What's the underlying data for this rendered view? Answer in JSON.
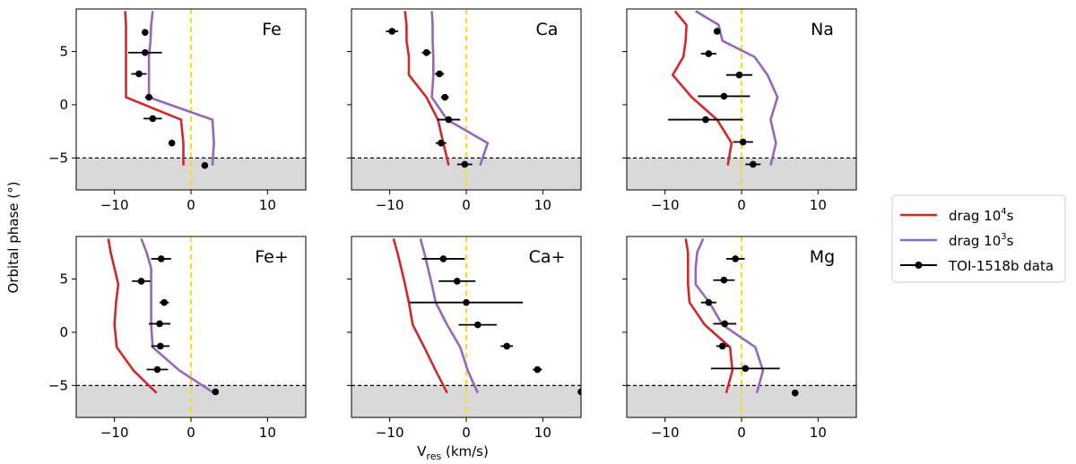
{
  "figure": {
    "ylabel": "Orbital phase (°)",
    "xlabel_main": "V",
    "xlabel_sub": "res",
    "xlabel_unit": " (km/s)"
  },
  "legend": {
    "position": "right",
    "entries": [
      {
        "label_main": "drag 10",
        "label_sup": "4",
        "label_end": "s",
        "color": "#d62728",
        "kind": "line"
      },
      {
        "label_main": "drag 10",
        "label_sup": "3",
        "label_end": "s",
        "color": "#9467bd",
        "kind": "line"
      },
      {
        "label_main": "TOI-1518b data",
        "label_sup": "",
        "label_end": "",
        "color": "#000000",
        "kind": "errorbar"
      }
    ]
  },
  "colors": {
    "drag_1e4": "#d62728",
    "drag_1e3": "#9467bd",
    "data": "#000000",
    "zero_line": "#ffd700",
    "shade": "#d9d9d9",
    "threshold": "#000000"
  },
  "chart_data": [
    {
      "type": "line",
      "title": "Fe",
      "xlim": [
        -15,
        15
      ],
      "ylim": [
        -8,
        9
      ],
      "xticks": [
        -10,
        0,
        10
      ],
      "yticks": [
        -5,
        0,
        5
      ],
      "show_xticklabels": true,
      "show_yticklabels": true,
      "shade_below": -5,
      "threshold": -5,
      "zero_line": 0,
      "series": [
        {
          "name": "drag 10^4s",
          "x": [
            -1.0,
            -1.0,
            -1.3,
            -8.5,
            -8.5,
            -8.5,
            -8.5,
            -8.5,
            -8.6
          ],
          "y": [
            -5.7,
            -3.6,
            -1.4,
            0.7,
            2.8,
            4.5,
            6.0,
            7.5,
            8.8
          ]
        },
        {
          "name": "drag 10^3s",
          "x": [
            2.8,
            3.0,
            2.8,
            -5.5,
            -5.5,
            -5.5,
            -5.3,
            -5.2,
            -5.0
          ],
          "y": [
            -5.7,
            -3.6,
            -1.4,
            0.7,
            2.8,
            4.5,
            6.0,
            7.5,
            8.8
          ]
        }
      ],
      "data_points": {
        "x": [
          -6.0,
          -6.0,
          -6.8,
          -5.5,
          -5.0,
          -2.5,
          1.8
        ],
        "y": [
          6.8,
          4.9,
          2.9,
          0.7,
          -1.3,
          -3.6,
          -5.7
        ],
        "xerr": [
          0,
          2.2,
          1.0,
          0.5,
          1.2,
          0.3,
          0
        ]
      }
    },
    {
      "type": "line",
      "title": "Ca",
      "xlim": [
        -15,
        15
      ],
      "ylim": [
        -8,
        9
      ],
      "xticks": [
        -10,
        0,
        10
      ],
      "yticks": [
        -5,
        0,
        5
      ],
      "show_xticklabels": true,
      "show_yticklabels": false,
      "shade_below": -5,
      "threshold": -5,
      "zero_line": 0,
      "series": [
        {
          "name": "drag 10^4s",
          "x": [
            -2.3,
            -3.0,
            -3.7,
            -5.2,
            -7.5,
            -7.5,
            -7.8,
            -7.8,
            -8.0
          ],
          "y": [
            -5.7,
            -3.6,
            -1.4,
            0.7,
            2.8,
            4.5,
            6.0,
            7.5,
            8.8
          ]
        },
        {
          "name": "drag 10^3s",
          "x": [
            1.8,
            2.8,
            -2.5,
            -4.5,
            -4.3,
            -4.3,
            -4.4,
            -4.4,
            -4.5
          ],
          "y": [
            -5.7,
            -3.6,
            -1.4,
            0.7,
            2.8,
            4.5,
            6.0,
            7.5,
            8.8
          ]
        }
      ],
      "data_points": {
        "x": [
          -9.7,
          -5.2,
          -3.5,
          -2.8,
          -2.3,
          -3.3,
          -0.2
        ],
        "y": [
          6.9,
          4.9,
          2.9,
          0.7,
          -1.4,
          -3.6,
          -5.6
        ],
        "xerr": [
          0.8,
          0.6,
          0.6,
          0.5,
          1.5,
          0.7,
          1.0
        ]
      }
    },
    {
      "type": "line",
      "title": "Na",
      "xlim": [
        -15,
        15
      ],
      "ylim": [
        -8,
        9
      ],
      "xticks": [
        -10,
        0,
        10
      ],
      "yticks": [
        -5,
        0,
        5
      ],
      "show_xticklabels": true,
      "show_yticklabels": false,
      "shade_below": -5,
      "threshold": -5,
      "zero_line": 0,
      "series": [
        {
          "name": "drag 10^4s",
          "x": [
            -1.8,
            -1.3,
            -3.2,
            -6.5,
            -9.0,
            -7.6,
            -7.3,
            -7.2,
            -8.7
          ],
          "y": [
            -5.7,
            -3.6,
            -1.4,
            0.7,
            2.8,
            4.5,
            6.0,
            7.5,
            8.8
          ]
        },
        {
          "name": "drag 10^3s",
          "x": [
            3.8,
            4.5,
            3.8,
            4.7,
            3.4,
            1.7,
            -2.5,
            -3.0,
            -6.0
          ],
          "y": [
            -5.7,
            -3.6,
            -1.4,
            0.7,
            2.8,
            4.5,
            6.0,
            7.5,
            8.8
          ]
        }
      ],
      "data_points": {
        "x": [
          -3.2,
          -4.3,
          -0.3,
          -2.3,
          -4.7,
          0.2,
          1.5
        ],
        "y": [
          6.9,
          4.8,
          2.8,
          0.8,
          -1.4,
          -3.5,
          -5.6
        ],
        "xerr": [
          0,
          1.0,
          1.7,
          3.4,
          4.9,
          1.3,
          1.0
        ]
      }
    },
    {
      "type": "line",
      "title": "Fe+",
      "xlim": [
        -15,
        15
      ],
      "ylim": [
        -8,
        9
      ],
      "xticks": [
        -10,
        0,
        10
      ],
      "yticks": [
        -5,
        0,
        5
      ],
      "show_xticklabels": true,
      "show_yticklabels": true,
      "shade_below": -5,
      "threshold": -5,
      "zero_line": 0,
      "series": [
        {
          "name": "drag 10^4s",
          "x": [
            -4.5,
            -7.5,
            -9.7,
            -10.0,
            -9.8,
            -9.5,
            -10.0,
            -10.5,
            -10.8
          ],
          "y": [
            -5.7,
            -3.6,
            -1.4,
            0.7,
            2.8,
            4.5,
            6.0,
            7.5,
            8.8
          ]
        },
        {
          "name": "drag 10^3s",
          "x": [
            3.0,
            -1.5,
            -5.0,
            -5.2,
            -5.2,
            -5.2,
            -5.2,
            -5.8,
            -6.5
          ],
          "y": [
            -5.7,
            -3.6,
            -1.4,
            0.7,
            2.8,
            4.5,
            6.0,
            7.5,
            8.8
          ]
        }
      ],
      "data_points": {
        "x": [
          -3.9,
          -6.5,
          -3.5,
          -4.1,
          -4.0,
          -4.4,
          3.2
        ],
        "y": [
          6.9,
          4.8,
          2.8,
          0.8,
          -1.3,
          -3.5,
          -5.6
        ],
        "xerr": [
          1.3,
          1.2,
          0.6,
          1.4,
          1.2,
          1.4,
          0
        ]
      }
    },
    {
      "type": "line",
      "title": "Ca+",
      "xlim": [
        -15,
        15
      ],
      "ylim": [
        -8,
        9
      ],
      "xticks": [
        -10,
        0,
        10
      ],
      "yticks": [
        -5,
        0,
        5
      ],
      "show_xticklabels": true,
      "show_yticklabels": false,
      "shade_below": -5,
      "threshold": -5,
      "zero_line": 0,
      "series": [
        {
          "name": "drag 10^4s",
          "x": [
            -2.5,
            -4.0,
            -5.5,
            -7.0,
            -7.5,
            -8.0,
            -8.5,
            -9.0,
            -9.5
          ],
          "y": [
            -5.7,
            -3.6,
            -1.4,
            0.7,
            2.8,
            4.5,
            6.0,
            7.5,
            8.8
          ]
        },
        {
          "name": "drag 10^3s",
          "x": [
            1.5,
            0.2,
            -0.8,
            -2.5,
            -4.0,
            -4.5,
            -5.0,
            -5.5,
            -6.0
          ],
          "y": [
            -5.7,
            -3.6,
            -1.4,
            0.7,
            2.8,
            4.5,
            6.0,
            7.5,
            8.8
          ]
        }
      ],
      "data_points": {
        "x": [
          -3.0,
          -1.2,
          0.0,
          1.5,
          5.3,
          9.3,
          15.0
        ],
        "y": [
          6.9,
          4.8,
          2.8,
          0.7,
          -1.3,
          -3.5,
          -5.6
        ],
        "xerr": [
          2.8,
          2.4,
          7.4,
          2.5,
          0.8,
          0.6,
          0
        ]
      }
    },
    {
      "type": "line",
      "title": "Mg",
      "xlim": [
        -15,
        15
      ],
      "ylim": [
        -8,
        9
      ],
      "xticks": [
        -10,
        0,
        10
      ],
      "yticks": [
        -5,
        0,
        5
      ],
      "show_xticklabels": true,
      "show_yticklabels": false,
      "shade_below": -5,
      "threshold": -5,
      "zero_line": 0,
      "series": [
        {
          "name": "drag 10^4s",
          "x": [
            -2.0,
            -1.2,
            -1.5,
            -4.8,
            -6.8,
            -7.0,
            -7.0,
            -7.0,
            -7.3
          ],
          "y": [
            -5.7,
            -3.6,
            -1.4,
            0.7,
            2.8,
            4.5,
            6.0,
            7.5,
            8.8
          ]
        },
        {
          "name": "drag 10^3s",
          "x": [
            2.0,
            2.8,
            1.8,
            -2.5,
            -4.2,
            -6.0,
            -6.0,
            -5.8,
            -5.0
          ],
          "y": [
            -5.7,
            -3.6,
            -1.4,
            0.7,
            2.8,
            4.5,
            6.0,
            7.5,
            8.8
          ]
        }
      ],
      "data_points": {
        "x": [
          -0.8,
          -2.3,
          -4.3,
          -2.2,
          -2.5,
          0.5,
          7.0
        ],
        "y": [
          6.9,
          4.9,
          2.8,
          0.8,
          -1.3,
          -3.4,
          -5.7
        ],
        "xerr": [
          1.2,
          1.4,
          1.0,
          1.5,
          0.8,
          4.5,
          0
        ]
      }
    }
  ]
}
